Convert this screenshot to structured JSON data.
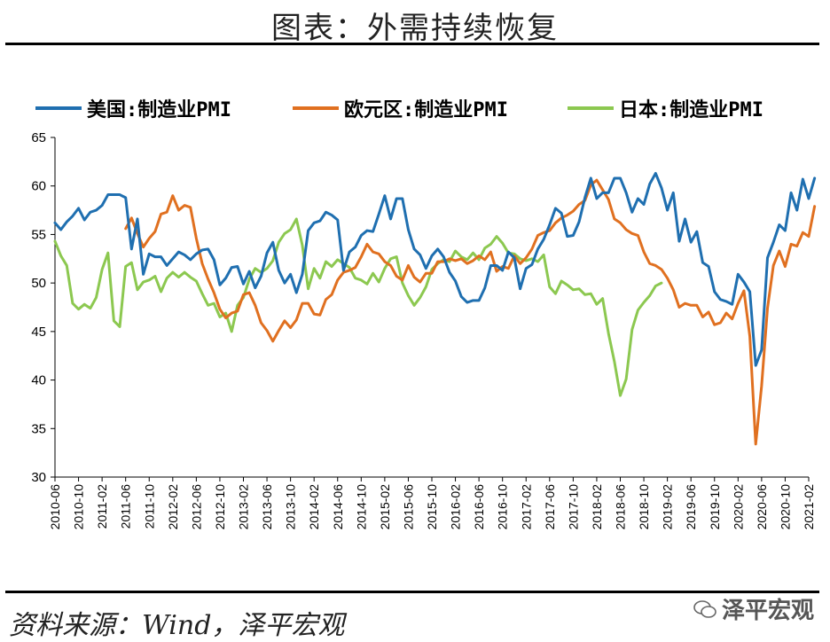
{
  "title": "图表：外需持续恢复",
  "source": "资料来源：Wind，泽平宏观",
  "watermark": "泽平宏观",
  "chart_data": {
    "type": "line",
    "title": "图表：外需持续恢复",
    "xlabel": "",
    "ylabel": "",
    "ylim": [
      30,
      65
    ],
    "yticks": [
      30,
      35,
      40,
      45,
      50,
      55,
      60,
      65
    ],
    "xtick_labels": [
      "2010-06",
      "2010-10",
      "2011-02",
      "2011-06",
      "2011-10",
      "2012-02",
      "2012-06",
      "2012-10",
      "2013-02",
      "2013-06",
      "2013-10",
      "2014-02",
      "2014-06",
      "2014-10",
      "2015-02",
      "2015-06",
      "2015-10",
      "2016-02",
      "2016-06",
      "2016-10",
      "2017-02",
      "2017-06",
      "2017-10",
      "2018-02",
      "2018-06",
      "2018-10",
      "2019-02",
      "2019-06",
      "2019-10",
      "2020-02",
      "2020-06",
      "2020-10",
      "2021-02"
    ],
    "x_start": "2010-06",
    "legend_position": "top",
    "grid": false,
    "series": [
      {
        "name": "美国:制造业PMI",
        "color": "#1f6fb0",
        "values": [
          56.2,
          55.5,
          56.3,
          56.9,
          57.7,
          56.5,
          57.3,
          57.5,
          58.0,
          59.1,
          59.1,
          59.1,
          58.8,
          53.5,
          56.6,
          50.9,
          53.0,
          52.7,
          52.7,
          51.8,
          52.5,
          53.2,
          52.9,
          52.4,
          53.0,
          53.4,
          53.5,
          52.4,
          49.8,
          50.5,
          51.6,
          51.7,
          49.9,
          51.2,
          49.5,
          50.7,
          53.1,
          54.2,
          51.3,
          50.0,
          50.9,
          49.0,
          50.9,
          55.4,
          56.2,
          56.4,
          57.3,
          57.0,
          56.5,
          51.3,
          53.2,
          53.7,
          54.9,
          55.4,
          55.3,
          57.1,
          59.0,
          56.6,
          58.7,
          58.7,
          55.5,
          53.5,
          52.9,
          51.5,
          52.8,
          53.5,
          52.7,
          51.1,
          50.2,
          48.6,
          48.0,
          48.2,
          48.2,
          49.5,
          51.8,
          51.8,
          51.3,
          53.2,
          52.6,
          49.4,
          51.5,
          51.9,
          53.5,
          54.5,
          56.0,
          57.7,
          57.2,
          54.8,
          54.9,
          56.3,
          58.8,
          60.8,
          58.7,
          59.3,
          59.3,
          60.8,
          60.8,
          59.3,
          57.3,
          58.7,
          58.1,
          60.2,
          61.3,
          59.8,
          57.5,
          59.3,
          54.3,
          56.6,
          54.2,
          55.3,
          52.1,
          51.7,
          49.1,
          48.3,
          48.1,
          47.8,
          50.9,
          50.1,
          49.1,
          41.5,
          43.1,
          52.6,
          54.2,
          56.0,
          55.4,
          59.3,
          57.5,
          60.7,
          58.7,
          60.8
        ],
        "start_index": 0
      },
      {
        "name": "欧元区:制造业PMI",
        "color": "#e07020",
        "values": [
          55.6,
          56.7,
          55.1,
          53.7,
          54.6,
          55.3,
          57.1,
          57.3,
          59.0,
          57.5,
          58.0,
          57.8,
          54.6,
          52.0,
          50.4,
          49.0,
          47.3,
          46.4,
          46.9,
          47.1,
          48.8,
          49.0,
          47.7,
          45.9,
          45.1,
          44.0,
          45.1,
          46.1,
          45.4,
          46.2,
          47.9,
          47.9,
          46.8,
          46.7,
          48.3,
          48.8,
          50.3,
          51.1,
          51.3,
          51.6,
          52.7,
          54.0,
          53.2,
          53.0,
          52.2,
          51.8,
          50.7,
          50.3,
          51.8,
          50.6,
          50.1,
          51.0,
          51.0,
          52.2,
          52.2,
          52.5,
          52.3,
          52.5,
          52.0,
          52.3,
          52.8,
          52.4,
          53.2,
          51.2,
          51.7,
          51.5,
          52.8,
          52.0,
          52.6,
          53.5,
          54.9,
          55.2,
          55.4,
          56.2,
          56.7,
          57.0,
          57.4,
          58.1,
          58.5,
          60.1,
          60.6,
          59.6,
          58.6,
          56.6,
          56.2,
          55.5,
          55.1,
          54.9,
          53.2,
          52.0,
          51.8,
          51.4,
          50.5,
          49.3,
          47.5,
          47.9,
          47.7,
          47.7,
          46.5,
          47.0,
          45.7,
          45.9,
          46.9,
          46.3,
          47.9,
          49.2,
          44.5,
          33.4,
          39.4,
          47.4,
          51.8,
          53.3,
          51.7,
          54.0,
          53.8,
          55.2,
          54.8,
          57.9
        ],
        "start_index": 12
      },
      {
        "name": "日本:制造业PMI",
        "color": "#8cc850",
        "values": [
          54.3,
          52.8,
          51.8,
          47.9,
          47.3,
          47.8,
          47.4,
          48.5,
          51.4,
          53.1,
          46.1,
          45.5,
          51.7,
          52.1,
          49.3,
          50.1,
          50.3,
          50.7,
          49.1,
          50.5,
          51.1,
          50.6,
          51.1,
          50.6,
          50.2,
          48.9,
          47.7,
          47.9,
          46.5,
          46.9,
          45.0,
          47.7,
          48.5,
          50.4,
          51.5,
          51.1,
          51.5,
          52.3,
          54.2,
          55.1,
          55.5,
          56.6,
          53.9,
          49.4,
          51.5,
          50.5,
          52.2,
          51.7,
          52.4,
          52.0,
          51.6,
          50.5,
          50.3,
          49.9,
          51.0,
          50.1,
          51.5,
          52.5,
          52.7,
          50.0,
          48.7,
          47.7,
          48.5,
          49.6,
          51.4,
          52.0,
          52.4,
          52.2,
          53.3,
          52.7,
          52.4,
          53.1,
          52.4,
          53.6,
          54.0,
          54.8,
          54.1,
          53.1,
          53.0,
          52.5,
          52.3,
          52.5,
          52.2,
          52.9,
          49.6,
          48.9,
          50.2,
          49.8,
          49.3,
          49.4,
          48.8,
          48.9,
          47.8,
          48.4,
          44.8,
          41.9,
          38.4,
          40.1,
          45.2,
          47.2,
          48.0,
          48.7,
          49.7,
          50.0
        ],
        "start_index": 0
      }
    ]
  }
}
